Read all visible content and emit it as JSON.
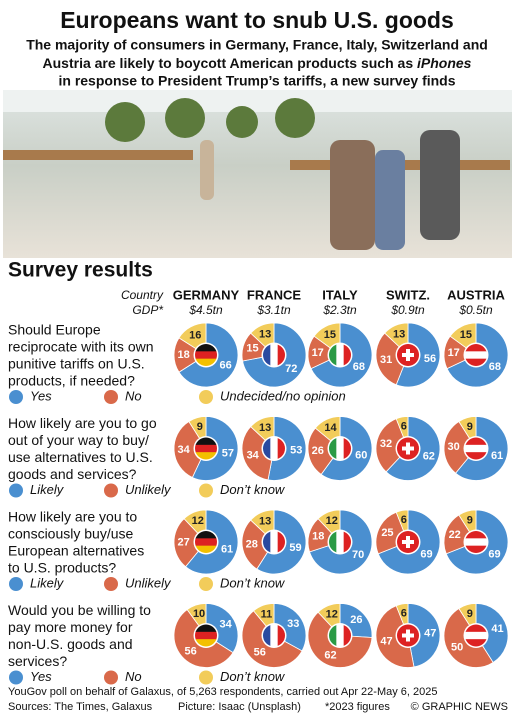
{
  "header": {
    "title": "Europeans want to snub U.S. goods",
    "subtitle": [
      "The majority of consumers in Germany, France, Italy, Switzerland and",
      [
        "Austria are likely to boycott American products such as ",
        "iPhones"
      ],
      "in response to President Trump’s tariffs, a new survey finds"
    ]
  },
  "section_title": "Survey results",
  "column_labels": [
    "Country",
    "GDP*"
  ],
  "countries": [
    {
      "name": "GERMANY",
      "gdp": "$4.5tn"
    },
    {
      "name": "FRANCE",
      "gdp": "$3.1tn"
    },
    {
      "name": "ITALY",
      "gdp": "$2.3tn"
    },
    {
      "name": "SWITZ.",
      "gdp": "$0.9tn"
    },
    {
      "name": "AUSTRIA",
      "gdp": "$0.5tn"
    }
  ],
  "chart_data": [
    {
      "type": "pie",
      "question": [
        "Should Europe",
        "reciprocate with its own",
        "punitive tariffs on U.S.",
        "products, if needed?"
      ],
      "categories": [
        "Yes",
        "No",
        "Undecided/no opinion"
      ],
      "colors": [
        "#4a8fd0",
        "#d9694a",
        "#f2cc5a"
      ],
      "series": [
        {
          "values": [
            66,
            18,
            16
          ]
        },
        {
          "values": [
            72,
            15,
            13
          ]
        },
        {
          "values": [
            68,
            17,
            15
          ]
        },
        {
          "values": [
            56,
            31,
            13
          ]
        },
        {
          "values": [
            68,
            17,
            15
          ]
        }
      ]
    },
    {
      "type": "pie",
      "question": [
        "How likely are you to go",
        "out of your way to buy/",
        "use alternatives to U.S.",
        "goods and services?"
      ],
      "categories": [
        "Likely",
        "Unlikely",
        "Don’t know"
      ],
      "colors": [
        "#4a8fd0",
        "#d9694a",
        "#f2cc5a"
      ],
      "series": [
        {
          "values": [
            57,
            34,
            9
          ]
        },
        {
          "values": [
            53,
            34,
            13
          ]
        },
        {
          "values": [
            60,
            26,
            14
          ]
        },
        {
          "values": [
            62,
            32,
            6
          ]
        },
        {
          "values": [
            61,
            30,
            9
          ]
        }
      ]
    },
    {
      "type": "pie",
      "question": [
        "How likely are you to",
        "consciously buy/use",
        "European alternatives",
        "to U.S. products?"
      ],
      "categories": [
        "Likely",
        "Unlikely",
        "Don’t know"
      ],
      "colors": [
        "#4a8fd0",
        "#d9694a",
        "#f2cc5a"
      ],
      "series": [
        {
          "values": [
            61,
            27,
            12
          ]
        },
        {
          "values": [
            59,
            28,
            13
          ]
        },
        {
          "values": [
            70,
            18,
            12
          ]
        },
        {
          "values": [
            69,
            25,
            6
          ]
        },
        {
          "values": [
            69,
            22,
            9
          ]
        }
      ]
    },
    {
      "type": "pie",
      "question": [
        "Would you be willing to",
        "pay more money for",
        "non-U.S. goods and",
        "services?"
      ],
      "categories": [
        "Yes",
        "No",
        "Don’t know"
      ],
      "colors": [
        "#4a8fd0",
        "#d9694a",
        "#f2cc5a"
      ],
      "series": [
        {
          "values": [
            34,
            56,
            10
          ]
        },
        {
          "values": [
            33,
            56,
            11
          ]
        },
        {
          "values": [
            26,
            62,
            12
          ]
        },
        {
          "values": [
            47,
            47,
            6
          ]
        },
        {
          "values": [
            41,
            50,
            9
          ]
        }
      ]
    }
  ],
  "footer": {
    "note": "YouGov poll on behalf of Galaxus, of 5,263 respondents, carried out Apr 22-May 6, 2025",
    "sources": "Sources: The Times, Galaxus",
    "picture": "Picture: Isaac (Unsplash)",
    "footnote": "*2023 figures",
    "credit": "© GRAPHIC NEWS"
  }
}
